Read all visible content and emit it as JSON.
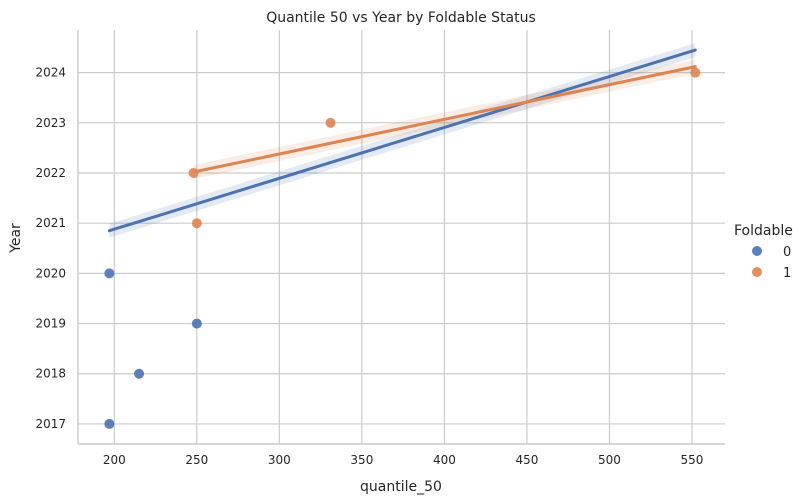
{
  "chart_data": {
    "type": "scatter",
    "title": "Quantile 50 vs Year by Foldable Status",
    "xlabel": "quantile_50",
    "ylabel": "Year",
    "xlim": [
      178,
      570
    ],
    "ylim": [
      2016.6,
      2024.85
    ],
    "xticks": [
      200,
      250,
      300,
      350,
      400,
      450,
      500,
      550
    ],
    "yticks": [
      2017,
      2018,
      2019,
      2020,
      2021,
      2022,
      2023,
      2024
    ],
    "grid": true,
    "legend": {
      "title": "Foldable",
      "placement": "right"
    },
    "series": [
      {
        "name": "0",
        "color": "#4c72b0",
        "points": [
          [
            197,
            2017
          ],
          [
            197,
            2020
          ],
          [
            215,
            2018
          ],
          [
            250,
            2019
          ]
        ],
        "regression": {
          "x": [
            197,
            552
          ],
          "y": [
            2020.85,
            2024.45
          ]
        }
      },
      {
        "name": "1",
        "color": "#dd8452",
        "points": [
          [
            248,
            2022
          ],
          [
            250,
            2021
          ],
          [
            331,
            2023
          ],
          [
            552,
            2024
          ]
        ],
        "regression": {
          "x": [
            248,
            552
          ],
          "y": [
            2022.02,
            2024.12
          ]
        }
      }
    ]
  }
}
